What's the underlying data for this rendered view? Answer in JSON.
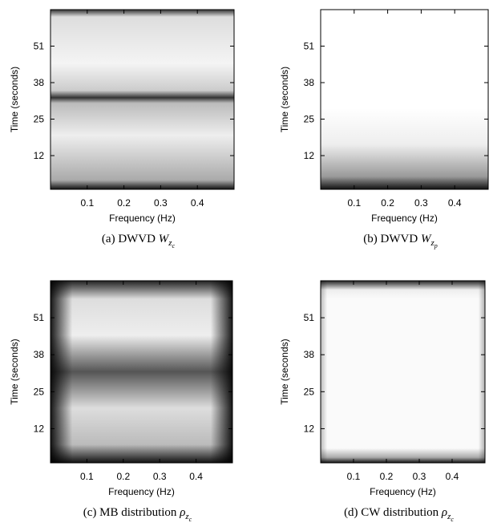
{
  "chart_data": [
    {
      "type": "heatmap",
      "xlabel": "Frequency (Hz)",
      "ylabel": "Time (seconds)",
      "xlim": [
        0,
        0.5
      ],
      "ylim": [
        0,
        64
      ],
      "xticks": [
        0.1,
        0.2,
        0.3,
        0.4
      ],
      "yticks": [
        12,
        25,
        38,
        51
      ],
      "caption": {
        "label": "(a) DWVD ",
        "symbol": "W",
        "sub": "z",
        "subsub": "c"
      }
    },
    {
      "type": "heatmap",
      "xlabel": "Frequency (Hz)",
      "ylabel": "Time (seconds)",
      "xlim": [
        0,
        0.5
      ],
      "ylim": [
        0,
        64
      ],
      "xticks": [
        0.1,
        0.2,
        0.3,
        0.4
      ],
      "yticks": [
        12,
        25,
        38,
        51
      ],
      "caption": {
        "label": "(b) DWVD ",
        "symbol": "W",
        "sub": "z",
        "subsub": "p"
      }
    },
    {
      "type": "heatmap",
      "xlabel": "Frequency (Hz)",
      "ylabel": "Time (seconds)",
      "xlim": [
        0,
        0.5
      ],
      "ylim": [
        0,
        64
      ],
      "xticks": [
        0.1,
        0.2,
        0.3,
        0.4
      ],
      "yticks": [
        12,
        25,
        38,
        51
      ],
      "caption": {
        "label": "(c) MB distribution ",
        "symbol": "ρ",
        "sub": "z",
        "subsub": "c"
      }
    },
    {
      "type": "heatmap",
      "xlabel": "Frequency (Hz)",
      "ylabel": "Time (seconds)",
      "xlim": [
        0,
        0.5
      ],
      "ylim": [
        0,
        64
      ],
      "xticks": [
        0.1,
        0.2,
        0.3,
        0.4
      ],
      "yticks": [
        12,
        25,
        38,
        51
      ],
      "caption": {
        "label": "(d) CW distribution ",
        "symbol": "ρ",
        "sub": "z",
        "subsub": "c"
      }
    }
  ]
}
